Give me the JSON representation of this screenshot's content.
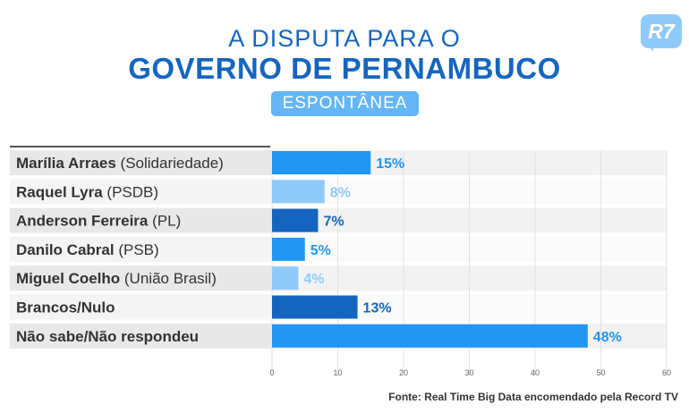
{
  "header": {
    "title_line1": "A DISPUTA PARA O",
    "title_line2": "GOVERNO DE PERNAMBUCO",
    "badge": "ESPONTÂNEA",
    "logo": "R7"
  },
  "source": "Fonte: Real Time Big Data encomendado pela Record TV",
  "chart_data": {
    "type": "bar",
    "orientation": "horizontal",
    "categories": [
      {
        "name": "Marília Arraes",
        "party": "(Solidariedade)"
      },
      {
        "name": "Raquel Lyra",
        "party": "(PSDB)"
      },
      {
        "name": "Anderson Ferreira",
        "party": "(PL)"
      },
      {
        "name": "Danilo Cabral",
        "party": "(PSB)"
      },
      {
        "name": "Miguel Coelho",
        "party": "(União Brasil)"
      },
      {
        "name": "Brancos/Nulo",
        "party": ""
      },
      {
        "name": "Não sabe/Não respondeu",
        "party": ""
      }
    ],
    "values": [
      15,
      8,
      7,
      5,
      4,
      13,
      48
    ],
    "value_labels": [
      "15%",
      "8%",
      "7%",
      "5%",
      "4%",
      "13%",
      "48%"
    ],
    "bar_colors": [
      "#2196f3",
      "#90caf9",
      "#1565c0",
      "#2196f3",
      "#90caf9",
      "#1565c0",
      "#2196f3"
    ],
    "xlim": [
      0,
      60
    ],
    "xticks": [
      "0",
      "10",
      "20",
      "30",
      "40",
      "50",
      "60"
    ],
    "grid": true
  }
}
